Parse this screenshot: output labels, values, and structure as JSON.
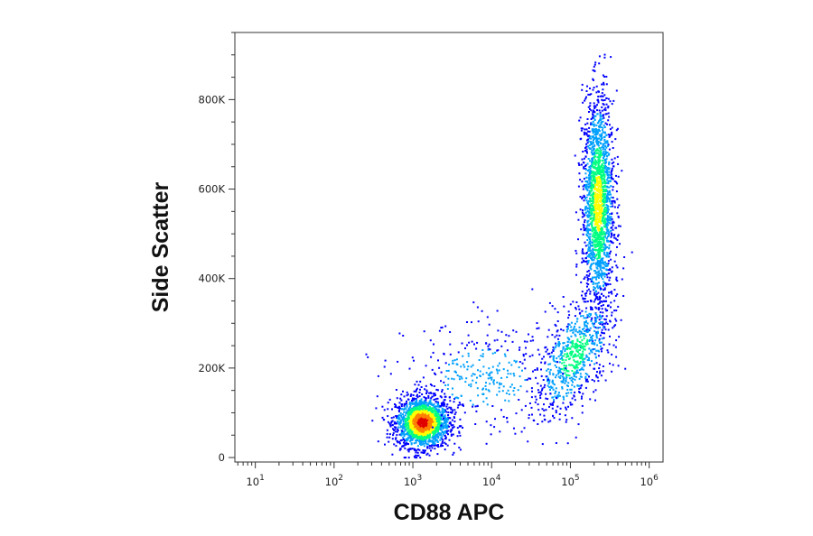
{
  "chart_data": {
    "type": "scatter",
    "style": "flow-cytometry-density-dot-plot",
    "xlabel": "CD88 APC",
    "ylabel": "Side Scatter",
    "xscale": "log",
    "xlim": [
      5.5,
      1500000
    ],
    "yscale": "linear",
    "ylim": [
      -10000,
      950000
    ],
    "x_ticks": [
      {
        "base": "10",
        "exp": "1",
        "value": 10
      },
      {
        "base": "10",
        "exp": "2",
        "value": 100
      },
      {
        "base": "10",
        "exp": "3",
        "value": 1000
      },
      {
        "base": "10",
        "exp": "4",
        "value": 10000
      },
      {
        "base": "10",
        "exp": "5",
        "value": 100000
      },
      {
        "base": "10",
        "exp": "6",
        "value": 1000000
      }
    ],
    "y_ticks": [
      {
        "label": "0",
        "value": 0
      },
      {
        "label": "200K",
        "value": 200000
      },
      {
        "label": "400K",
        "value": 400000
      },
      {
        "label": "600K",
        "value": 600000
      },
      {
        "label": "800K",
        "value": 800000
      }
    ],
    "grid": false,
    "colormap": [
      "#0000ff",
      "#00a0ff",
      "#00ff80",
      "#ffff00",
      "#ff8000",
      "#e00000"
    ],
    "populations": [
      {
        "x_center": 1300,
        "y_center": 80000,
        "x_spread_decades": 0.17,
        "y_spread": 28000,
        "count": 1900,
        "peak": "red"
      },
      {
        "x_center": 220000,
        "y_center": 570000,
        "x_spread_decades": 0.1,
        "y_spread": 120000,
        "count": 1900,
        "peak": "yellow"
      },
      {
        "x_center": 110000,
        "y_center": 230000,
        "x_spread_decades": 0.25,
        "y_spread": 55000,
        "count": 700,
        "peak": "cyan"
      },
      {
        "x_center": 8000,
        "y_center": 180000,
        "x_spread_decades": 0.5,
        "y_spread": 60000,
        "count": 350,
        "peak": "blue"
      }
    ]
  }
}
